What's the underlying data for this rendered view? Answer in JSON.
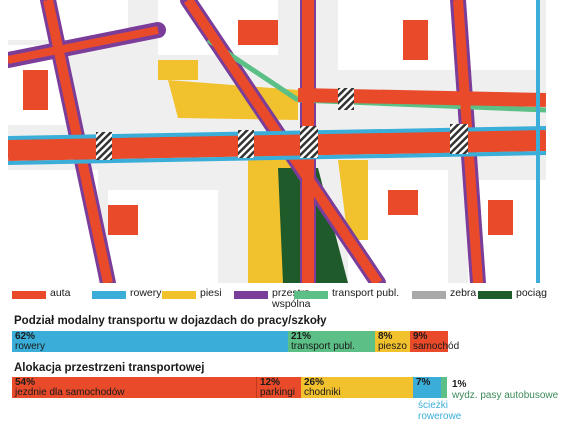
{
  "colors": {
    "auta": "#e84a2a",
    "rowery": "#3aaed8",
    "piesi": "#f2c12e",
    "wspolna": "#7b3d9a",
    "transport": "#5bbf86",
    "zebra": "#a9a9a9",
    "pociag": "#1f5a2a",
    "background": "#efefef",
    "block": "#ffffff"
  },
  "legend": [
    {
      "key": "auta",
      "label": "auta",
      "icon": "swatch-red"
    },
    {
      "key": "rowery",
      "label": "rowery",
      "icon": "swatch-blue"
    },
    {
      "key": "piesi",
      "label": "piesi",
      "icon": "swatch-yellow"
    },
    {
      "key": "wspolna",
      "label": "przestrz.\nwspólna",
      "icon": "swatch-purple"
    },
    {
      "key": "transport",
      "label": "transport publ.",
      "icon": "swatch-green"
    },
    {
      "key": "zebra",
      "label": "zebra",
      "icon": "swatch-grey"
    },
    {
      "key": "pociag",
      "label": "pociąg",
      "icon": "swatch-darkgreen"
    }
  ],
  "modal": {
    "title": "Podział modalny transportu w dojazdach do pracy/szkoły",
    "segments": [
      {
        "pct": "62%",
        "label": "rowery",
        "value": 62,
        "color": "#3aaed8"
      },
      {
        "pct": "21%",
        "label": "transport publ.",
        "value": 21,
        "color": "#5bbf86"
      },
      {
        "pct": "8%",
        "label": "pieszo",
        "value": 8,
        "color": "#f2c12e"
      },
      {
        "pct": "9%",
        "label": "samochód",
        "value": 9,
        "color": "#e84a2a"
      }
    ]
  },
  "allocation": {
    "title": "Alokacja przestrzeni transportowej",
    "segments": [
      {
        "pct": "54%",
        "label": "jezdnie dla samochodów",
        "value": 54,
        "color": "#e84a2a"
      },
      {
        "pct": "12%",
        "label": "parkingi",
        "value": 12,
        "color": "#e84a2a"
      },
      {
        "pct": "26%",
        "label": "chodniki",
        "value": 26,
        "color": "#f2c12e"
      },
      {
        "pct": "7%",
        "label": "ścieżki\nrowerowe",
        "value": 7,
        "color": "#3aaed8"
      },
      {
        "pct": "1%",
        "label": "wydz. pasy  autobusowe",
        "value": 1,
        "color": "#5bbf86"
      }
    ]
  }
}
